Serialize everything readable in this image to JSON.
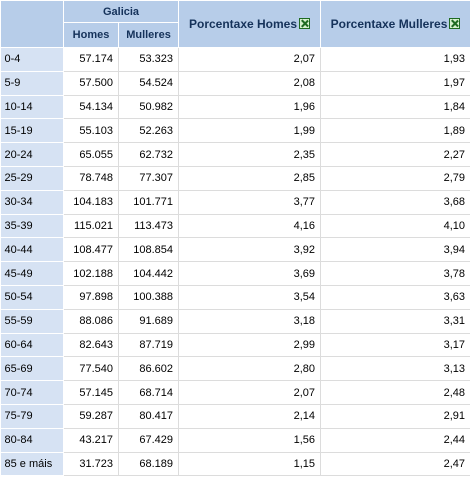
{
  "header": {
    "region": "Galicia",
    "homes": "Homes",
    "mulleres": "Mulleres",
    "pct_homes": "Porcentaxe Homes",
    "pct_mulleres": "Porcentaxe Mulleres",
    "excel_icon": "excel-icon"
  },
  "rows": [
    {
      "age": "0-4",
      "homes": "57.174",
      "mulleres": "53.323",
      "pct_homes": "2,07",
      "pct_mulleres": "1,93"
    },
    {
      "age": "5-9",
      "homes": "57.500",
      "mulleres": "54.524",
      "pct_homes": "2,08",
      "pct_mulleres": "1,97"
    },
    {
      "age": "10-14",
      "homes": "54.134",
      "mulleres": "50.982",
      "pct_homes": "1,96",
      "pct_mulleres": "1,84"
    },
    {
      "age": "15-19",
      "homes": "55.103",
      "mulleres": "52.263",
      "pct_homes": "1,99",
      "pct_mulleres": "1,89"
    },
    {
      "age": "20-24",
      "homes": "65.055",
      "mulleres": "62.732",
      "pct_homes": "2,35",
      "pct_mulleres": "2,27"
    },
    {
      "age": "25-29",
      "homes": "78.748",
      "mulleres": "77.307",
      "pct_homes": "2,85",
      "pct_mulleres": "2,79"
    },
    {
      "age": "30-34",
      "homes": "104.183",
      "mulleres": "101.771",
      "pct_homes": "3,77",
      "pct_mulleres": "3,68"
    },
    {
      "age": "35-39",
      "homes": "115.021",
      "mulleres": "113.473",
      "pct_homes": "4,16",
      "pct_mulleres": "4,10"
    },
    {
      "age": "40-44",
      "homes": "108.477",
      "mulleres": "108.854",
      "pct_homes": "3,92",
      "pct_mulleres": "3,94"
    },
    {
      "age": "45-49",
      "homes": "102.188",
      "mulleres": "104.442",
      "pct_homes": "3,69",
      "pct_mulleres": "3,78"
    },
    {
      "age": "50-54",
      "homes": "97.898",
      "mulleres": "100.388",
      "pct_homes": "3,54",
      "pct_mulleres": "3,63"
    },
    {
      "age": "55-59",
      "homes": "88.086",
      "mulleres": "91.689",
      "pct_homes": "3,18",
      "pct_mulleres": "3,31"
    },
    {
      "age": "60-64",
      "homes": "82.643",
      "mulleres": "87.719",
      "pct_homes": "2,99",
      "pct_mulleres": "3,17"
    },
    {
      "age": "65-69",
      "homes": "77.540",
      "mulleres": "86.602",
      "pct_homes": "2,80",
      "pct_mulleres": "3,13"
    },
    {
      "age": "70-74",
      "homes": "57.145",
      "mulleres": "68.714",
      "pct_homes": "2,07",
      "pct_mulleres": "2,48"
    },
    {
      "age": "75-79",
      "homes": "59.287",
      "mulleres": "80.417",
      "pct_homes": "2,14",
      "pct_mulleres": "2,91"
    },
    {
      "age": "80-84",
      "homes": "43.217",
      "mulleres": "67.429",
      "pct_homes": "1,56",
      "pct_mulleres": "2,44"
    },
    {
      "age": "85 e máis",
      "homes": "31.723",
      "mulleres": "68.189",
      "pct_homes": "1,15",
      "pct_mulleres": "2,47"
    }
  ]
}
